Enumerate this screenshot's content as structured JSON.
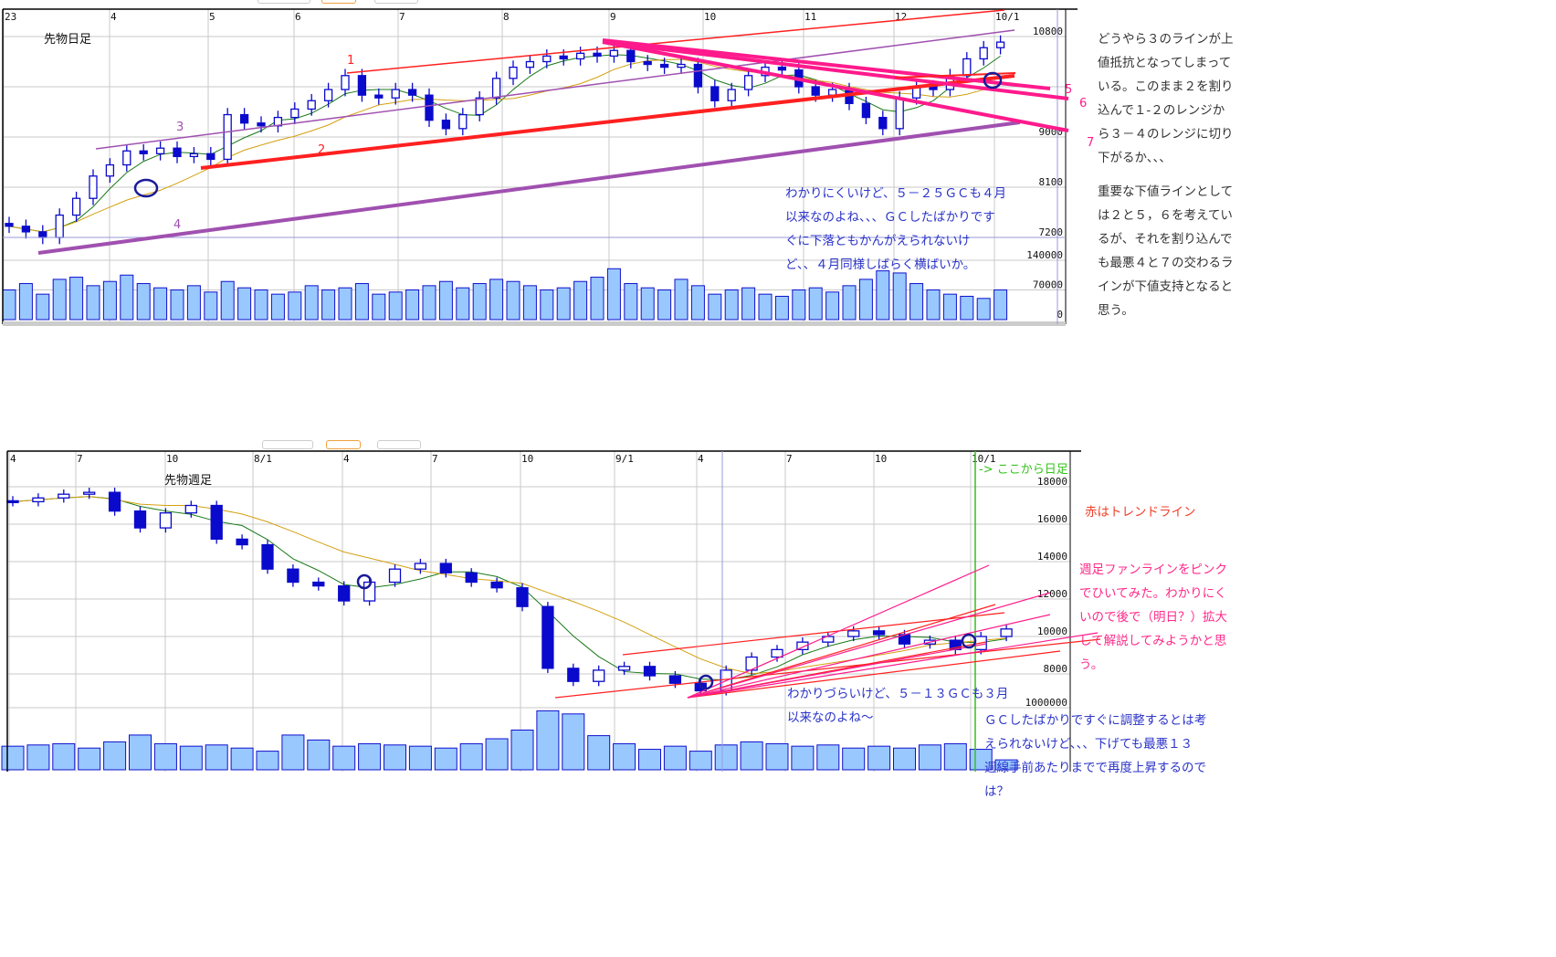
{
  "colors": {
    "up_candle": "#ffffff",
    "candle": "#0a0acc",
    "volume_fill": "#99c8ff",
    "volume_stroke": "#1010cc",
    "ma_short": "#1a7a1a",
    "ma_long": "#d4a010",
    "trend_red": "#ff2020",
    "trend_pink": "#ff1a8c",
    "trend_purple": "#a050b0",
    "grid": "#c8c8c8"
  },
  "chart_data": [
    {
      "type": "candlestick",
      "title": "先物日足",
      "x_tick_labels": [
        "23",
        "4",
        "5",
        "6",
        "7",
        "8",
        "9",
        "10",
        "11",
        "12",
        "10/1"
      ],
      "y_tick_labels": [
        "10800",
        "9000",
        "8100",
        "7200"
      ],
      "volume_tick_labels": [
        "140000",
        "70000",
        "0"
      ],
      "ylim": [
        7000,
        11000
      ],
      "grid": true,
      "close": [
        7400,
        7300,
        7200,
        7600,
        7900,
        8300,
        8500,
        8750,
        8700,
        8800,
        8650,
        8700,
        8600,
        9400,
        9250,
        9200,
        9350,
        9500,
        9650,
        9850,
        10100,
        9750,
        9700,
        9850,
        9750,
        9300,
        9150,
        9400,
        9700,
        10050,
        10250,
        10350,
        10450,
        10400,
        10500,
        10450,
        10550,
        10350,
        10300,
        10250,
        10300,
        9900,
        9650,
        9850,
        10100,
        10250,
        10200,
        9900,
        9750,
        9850,
        9600,
        9350,
        9150,
        9700,
        9900,
        9850,
        10100,
        10400,
        10600,
        10700
      ],
      "volume": [
        70000,
        85000,
        60000,
        95000,
        100000,
        80000,
        90000,
        105000,
        85000,
        75000,
        70000,
        80000,
        65000,
        90000,
        75000,
        70000,
        60000,
        65000,
        80000,
        70000,
        75000,
        85000,
        60000,
        65000,
        70000,
        80000,
        90000,
        75000,
        85000,
        95000,
        90000,
        80000,
        70000,
        75000,
        90000,
        100000,
        120000,
        85000,
        75000,
        70000,
        95000,
        80000,
        60000,
        70000,
        75000,
        60000,
        55000,
        70000,
        75000,
        65000,
        80000,
        95000,
        115000,
        110000,
        85000,
        70000,
        60000,
        55000,
        50000,
        70000
      ],
      "trendline_labels": [
        "1",
        "2",
        "3",
        "4",
        "5",
        "6",
        "7"
      ]
    },
    {
      "type": "candlestick",
      "title": "先物週足",
      "x_tick_labels": [
        "4",
        "7",
        "10",
        "8/1",
        "4",
        "7",
        "10",
        "9/1",
        "4",
        "7",
        "10",
        "10/1"
      ],
      "y_tick_labels": [
        "18000",
        "16000",
        "14000",
        "12000",
        "10000",
        "8000"
      ],
      "volume_tick_labels": [
        "1000000"
      ],
      "ylim": [
        6000,
        18500
      ],
      "grid": true,
      "close": [
        17200,
        17400,
        17600,
        17700,
        16700,
        15800,
        16600,
        17000,
        15200,
        14900,
        13600,
        12900,
        12700,
        11900,
        12900,
        13600,
        13900,
        13400,
        12900,
        12600,
        11600,
        8300,
        7600,
        8200,
        8400,
        7900,
        7500,
        7100,
        8200,
        8900,
        9300,
        9700,
        10000,
        10300,
        10100,
        9600,
        9800,
        9300,
        10000,
        10400
      ],
      "volume": [
        380000,
        400000,
        420000,
        350000,
        450000,
        560000,
        420000,
        380000,
        400000,
        350000,
        300000,
        560000,
        480000,
        380000,
        420000,
        400000,
        380000,
        350000,
        420000,
        500000,
        640000,
        950000,
        900000,
        550000,
        420000,
        330000,
        380000,
        300000,
        400000,
        450000,
        420000,
        380000,
        400000,
        350000,
        380000,
        350000,
        400000,
        420000,
        330000,
        160000
      ],
      "annotation_start_daily": "-> ここから日足"
    }
  ],
  "notes": {
    "daily_right": [
      "どうやら３のラインが上",
      "値抵抗となってしまって",
      "いる。このまま２を割り",
      "込んで１-２のレンジか",
      "ら３－４のレンジに切り",
      "下がるか、、、"
    ],
    "daily_right2": [
      "重要な下値ラインとして",
      "は２と５，６を考えてい",
      "るが、それを割り込んで",
      "も最悪４と７の交わるラ",
      "インが下値支持となると",
      "思う。"
    ],
    "daily_chart": [
      "わかりにくいけど、５－２５ＧＣも４月",
      "以来なのよね、、、ＧＣしたばかりです",
      "ぐに下落ともかんがえられないけ",
      "ど、、４月同様しばらく横ばいか。"
    ],
    "weekly_red": "赤はトレンドライン",
    "weekly_pink": [
      "週足ファンラインをピンク",
      "でひいてみた。わかりにく",
      "いので後で（明日？）拡大",
      "して解説してみようかと思",
      "う。"
    ],
    "weekly_chart1": [
      "わかりづらいけど、５－１３ＧＣも３月",
      "以来なのよね～"
    ],
    "weekly_chart2": [
      "ＧＣしたばかりですぐに調整するとは考",
      "えられないけど、、、下げても最悪１３",
      "週線手前あたりまでで再度上昇するので",
      "は？"
    ]
  }
}
